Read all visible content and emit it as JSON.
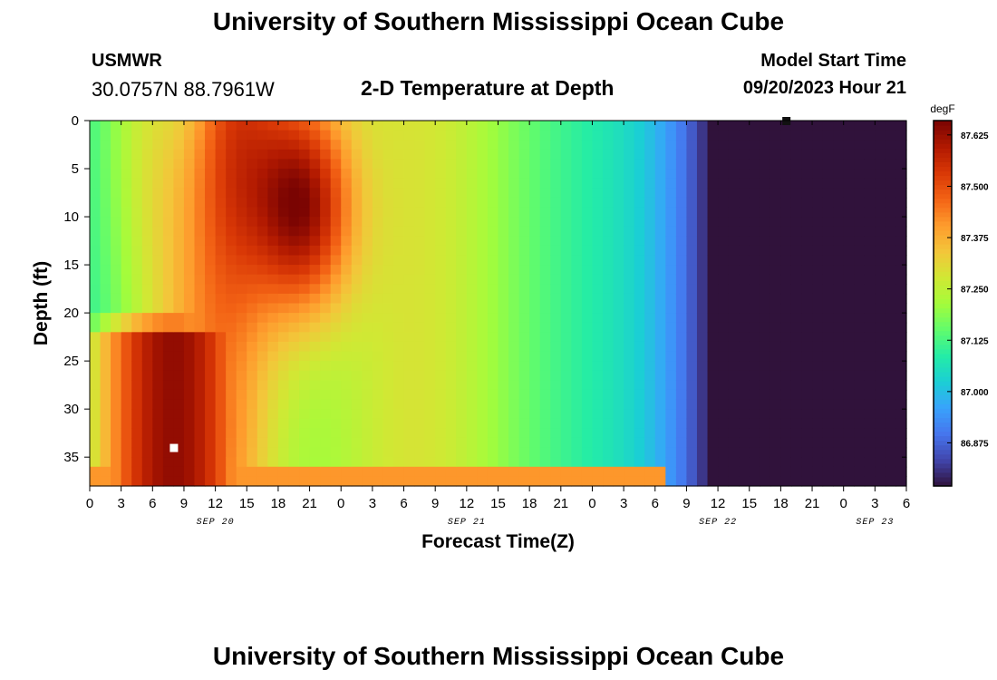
{
  "header": {
    "title": "University of Southern Mississippi Ocean Cube",
    "station": "USMWR",
    "coordinates": "30.0757N  88.7961W",
    "subtitle": "2-D Temperature at Depth",
    "start_label": "Model Start Time",
    "start_value": "09/20/2023 Hour 21"
  },
  "footer": {
    "title": "University of Southern Mississippi Ocean Cube"
  },
  "chart_data": {
    "type": "heatmap",
    "xlabel": "Forecast Time(Z)",
    "ylabel": "Depth (ft)",
    "x_tick_labels": [
      "0",
      "3",
      "6",
      "9",
      "12",
      "15",
      "18",
      "21",
      "0",
      "3",
      "6",
      "9",
      "12",
      "15",
      "18",
      "21",
      "0",
      "3",
      "6",
      "9",
      "12",
      "15",
      "18",
      "21",
      "0",
      "3",
      "6"
    ],
    "date_labels": [
      "SEP 20",
      "SEP 21",
      "SEP 22",
      "SEP 23"
    ],
    "date_label_positions_hours": [
      12,
      36,
      60,
      75
    ],
    "xlim_hours": [
      0,
      78
    ],
    "y_ticks": [
      0,
      5,
      10,
      15,
      20,
      25,
      30,
      35
    ],
    "ylim": [
      0,
      38
    ],
    "y_inverted": true,
    "colorbar": {
      "label": "degF",
      "ticks": [
        "87.625",
        "87.500",
        "87.375",
        "87.250",
        "87.125",
        "87.000",
        "86.875"
      ],
      "vmin": 86.77,
      "vmax": 87.66,
      "colors": [
        "#30123b",
        "#4145ab",
        "#4675ed",
        "#39a2fc",
        "#1bcfd4",
        "#24eca6",
        "#61fc6c",
        "#a4fc3b",
        "#d1e834",
        "#f3c63a",
        "#fe9b2d",
        "#f36315",
        "#d93806",
        "#b11901",
        "#7a0402"
      ]
    },
    "grid": false,
    "markers": [
      {
        "shape": "square",
        "color": "#ffffff",
        "x_hours": 8,
        "depth": 34
      },
      {
        "shape": "square",
        "color": "#111111",
        "x_hours": 66.5,
        "depth": 0
      }
    ]
  }
}
